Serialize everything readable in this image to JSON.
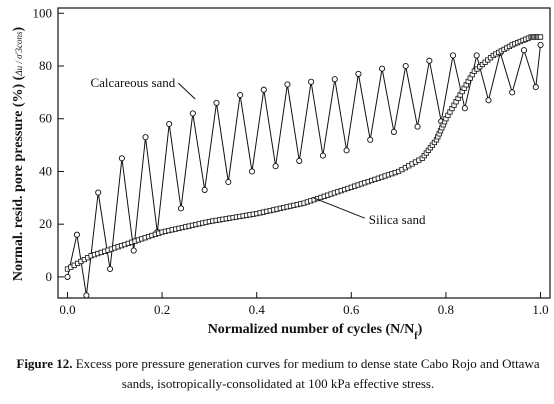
{
  "chart_data": {
    "type": "line",
    "xlabel": "Normalized number of cycles (N/N",
    "xlabel_sub": "f",
    "xlabel_tail": ")",
    "ylabel": "Normal. resid. pore pressure (%) (",
    "ylabel_fraction": "Δu / σ'3cons",
    "ylabel_tail": ")",
    "xlim": [
      -0.02,
      1.02
    ],
    "ylim": [
      -8,
      102
    ],
    "x_ticks": [
      "0.0",
      "0.2",
      "0.4",
      "0.6",
      "0.8",
      "1.0"
    ],
    "x_tick_values": [
      0,
      0.2,
      0.4,
      0.6,
      0.8,
      1.0
    ],
    "y_ticks": [
      "0",
      "20",
      "40",
      "60",
      "80",
      "100"
    ],
    "y_tick_values": [
      0,
      20,
      40,
      60,
      80,
      100
    ],
    "grid": false,
    "annotations": [
      {
        "text": "Calcareous sand",
        "points_to": "calcareous",
        "at": [
          0.228,
          72
        ]
      },
      {
        "text": "Silica sand",
        "points_to": "silica",
        "at": [
          0.637,
          20
        ]
      }
    ],
    "series": [
      {
        "name": "Calcareous sand",
        "marker": "circle",
        "x": [
          0.0,
          0.02,
          0.04,
          0.065,
          0.09,
          0.115,
          0.14,
          0.165,
          0.19,
          0.215,
          0.24,
          0.265,
          0.29,
          0.315,
          0.34,
          0.365,
          0.39,
          0.415,
          0.44,
          0.465,
          0.49,
          0.515,
          0.54,
          0.565,
          0.59,
          0.615,
          0.64,
          0.665,
          0.69,
          0.715,
          0.74,
          0.765,
          0.79,
          0.815,
          0.84,
          0.865,
          0.89,
          0.915,
          0.94,
          0.965,
          0.99,
          1.0
        ],
        "y": [
          0,
          16,
          -7,
          32,
          3,
          45,
          10,
          53,
          17,
          58,
          26,
          62,
          33,
          66,
          36,
          69,
          40,
          71,
          42,
          73,
          44,
          74,
          46,
          75,
          48,
          77,
          52,
          79,
          55,
          80,
          57,
          82,
          59,
          84,
          64,
          84,
          67,
          85,
          70,
          86,
          72,
          88
        ]
      },
      {
        "name": "Silica sand",
        "marker": "square",
        "x": [
          0.0,
          0.05,
          0.1,
          0.15,
          0.2,
          0.25,
          0.3,
          0.35,
          0.4,
          0.45,
          0.5,
          0.55,
          0.6,
          0.65,
          0.7,
          0.75,
          0.78,
          0.8,
          0.83,
          0.86,
          0.9,
          0.94,
          0.98,
          1.0
        ],
        "y": [
          3,
          8,
          11,
          14,
          17,
          19,
          21,
          22.5,
          24,
          26,
          28,
          31,
          34,
          37,
          40,
          45,
          52,
          60,
          69,
          78,
          84,
          88,
          91,
          91
        ]
      }
    ]
  },
  "caption": {
    "label": "Figure 12.",
    "text": "Excess pore pressure generation curves for medium to dense state Cabo Rojo and Ottawa sands, isotropically-consolidated at 100 kPa effective stress."
  }
}
